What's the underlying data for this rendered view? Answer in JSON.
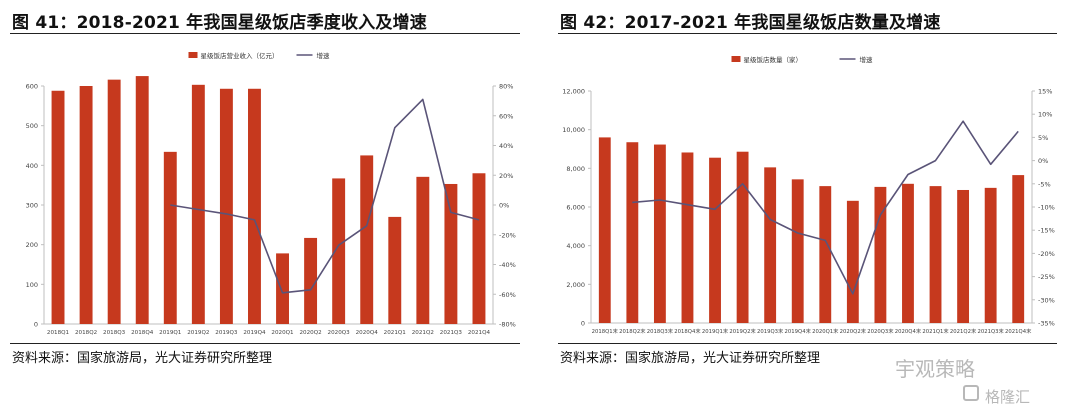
{
  "charts_meta": [
    {
      "title": "图 41：2018-2021 年我国星级饭店季度收入及增速",
      "source": "资料来源：国家旅游局，光大证券研究所整理"
    },
    {
      "title": "图 42：2017-2021 年我国星级饭店数量及增速",
      "source": "资料来源：国家旅游局，光大证券研究所整理"
    }
  ],
  "watermark": {
    "name": "宇观策略",
    "brand": "格隆汇"
  },
  "colors": {
    "bar": "#C6391E",
    "line": "#5A5478",
    "axis": "#BFBFBF"
  },
  "chart_data": [
    {
      "type": "bar",
      "categories": [
        "2018Q1",
        "2018Q2",
        "2018Q3",
        "2018Q4",
        "2019Q1",
        "2019Q2",
        "2019Q3",
        "2019Q4",
        "2020Q1",
        "2020Q2",
        "2020Q3",
        "2020Q4",
        "2021Q1",
        "2021Q2",
        "2021Q3",
        "2021Q4"
      ],
      "series": [
        {
          "name": "星级饭店营业收入（亿元）",
          "kind": "bar",
          "axis": "left",
          "values": [
            588,
            600,
            616,
            625,
            434,
            603,
            593,
            593,
            178,
            217,
            367,
            425,
            270,
            371,
            353,
            380
          ]
        },
        {
          "name": "增速",
          "kind": "line",
          "axis": "right",
          "values": [
            null,
            null,
            null,
            null,
            0,
            -3,
            -6,
            -10,
            -59,
            -57,
            -27,
            -14,
            52,
            71,
            -5,
            -10
          ]
        }
      ],
      "ylim": [
        0,
        600
      ],
      "yticks": [
        "0",
        "100",
        "200",
        "300",
        "400",
        "500",
        "600"
      ],
      "y2lim": [
        -80,
        80
      ],
      "y2ticks": [
        "-80%",
        "-60%",
        "-40%",
        "-20%",
        "0%",
        "20%",
        "40%",
        "60%",
        "80%"
      ]
    },
    {
      "type": "bar",
      "categories": [
        "2018Q1末",
        "2018Q2末",
        "2018Q3末",
        "2018Q4末",
        "2019Q1末",
        "2019Q2末",
        "2019Q3末",
        "2019Q4末",
        "2020Q1末",
        "2020Q2末",
        "2020Q3末",
        "2020Q4末",
        "2021Q1末",
        "2021Q2末",
        "2021Q3末",
        "2021Q4末"
      ],
      "series": [
        {
          "name": "星级饭店数量（家）",
          "kind": "bar",
          "axis": "left",
          "values": [
            9600,
            9350,
            9230,
            8820,
            8550,
            8860,
            8050,
            7430,
            7080,
            6320,
            7040,
            7200,
            7080,
            6880,
            6990,
            7650
          ]
        },
        {
          "name": "增速",
          "kind": "line",
          "axis": "right",
          "values": [
            null,
            -9,
            -8.5,
            -9.5,
            -10.5,
            -5,
            -12.7,
            -15.6,
            -17.2,
            -28.7,
            -11.7,
            -3,
            0,
            8.5,
            -0.8,
            6.3
          ]
        }
      ],
      "ylim": [
        0,
        12000
      ],
      "yticks": [
        "0",
        "2,000",
        "4,000",
        "6,000",
        "8,000",
        "10,000",
        "12,000"
      ],
      "y2lim": [
        -35,
        15
      ],
      "y2ticks": [
        "-35%",
        "-30%",
        "-25%",
        "-20%",
        "-15%",
        "-10%",
        "-5%",
        "0%",
        "5%",
        "10%",
        "15%"
      ]
    }
  ]
}
